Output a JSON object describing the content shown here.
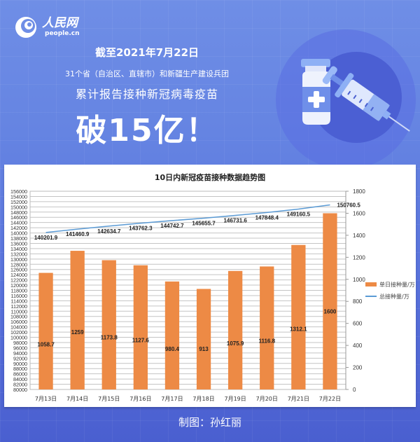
{
  "header": {
    "logo_cn": "人民网",
    "logo_en": "people.cn",
    "date_line": "截至2021年7月22日",
    "sub_line": "31个省（自治区、直辖市）和新疆生产建设兵团",
    "main_line": "累计报告接种新冠病毒疫苗",
    "big_line": "破15亿！",
    "illustration": "vaccine-vial-and-syringe-icon"
  },
  "colors": {
    "bar": "#ed8a45",
    "line": "#5b9bd5",
    "background_top": "#6f8ee6",
    "background_bottom": "#4a5fd0"
  },
  "chart_data": {
    "type": "bar",
    "title": "10日内新冠疫苗接种数据趋势图",
    "categories": [
      "7月13日",
      "7月14日",
      "7月15日",
      "7月16日",
      "7月17日",
      "7月18日",
      "7月19日",
      "7月20日",
      "7月21日",
      "7月22日"
    ],
    "series": [
      {
        "name": "单日接种量/万",
        "type": "bar",
        "axis": "right",
        "values": [
          1058.7,
          1259,
          1173.8,
          1127.6,
          980.4,
          913,
          1075.9,
          1116.8,
          1312.1,
          1600
        ]
      },
      {
        "name": "总接种量/万",
        "type": "line",
        "axis": "left",
        "values": [
          140201.9,
          141460.9,
          142634.7,
          143762.3,
          144742.7,
          145655.7,
          146731.6,
          147848.4,
          149160.5,
          150760.5
        ]
      }
    ],
    "left_axis": {
      "min": 80000,
      "max": 156000,
      "step": 2000
    },
    "right_axis": {
      "min": 0,
      "max": 1800,
      "step": 200
    },
    "xlabel": "",
    "ylabel": "",
    "grid": true,
    "legend_position": "right"
  },
  "legend": [
    {
      "label": "单日接种量/万"
    },
    {
      "label": "总接种量/万"
    }
  ],
  "footer": {
    "credit": "制图：孙红丽"
  }
}
